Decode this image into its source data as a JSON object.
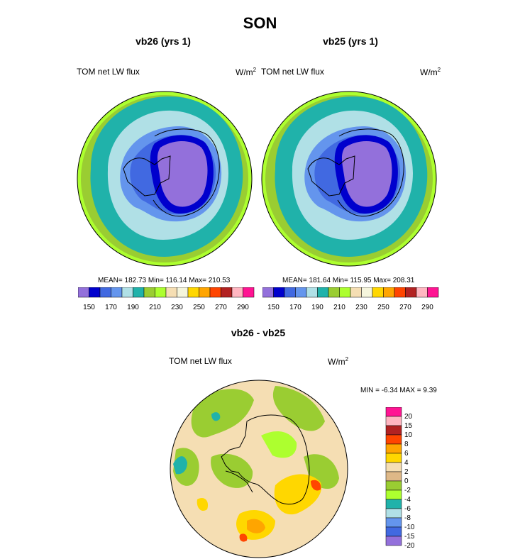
{
  "figure_title": "SON",
  "panels": [
    {
      "title": "vb26 (yrs 1)",
      "variable": "TOM net LW flux",
      "units_base": "W/m",
      "units_exp": "2",
      "stats": "MEAN= 182.73  Min= 116.14  Max= 210.53"
    },
    {
      "title": "vb25 (yrs 1)",
      "variable": "TOM net LW flux",
      "units_base": "W/m",
      "units_exp": "2",
      "stats": "MEAN= 181.64  Min= 115.95  Max= 208.31"
    },
    {
      "title": "vb26 - vb25",
      "variable": "TOM net LW flux",
      "units_base": "W/m",
      "units_exp": "2",
      "stats": "MIN =  -6.34 MAX =   9.39"
    }
  ],
  "colorbar_abs": {
    "colors": [
      "#9370DB",
      "#0000CD",
      "#4169E1",
      "#6495ED",
      "#B0E0E6",
      "#20B2AA",
      "#9ACD32",
      "#ADFF2F",
      "#F5DEB3",
      "#F5F5DC",
      "#FFD700",
      "#FFA500",
      "#FF4500",
      "#B22222",
      "#FFB6C1",
      "#FF1493"
    ],
    "labels": [
      "150",
      "170",
      "190",
      "210",
      "230",
      "250",
      "270",
      "290"
    ]
  },
  "colorbar_diff": {
    "colors": [
      "#9370DB",
      "#4169E1",
      "#6495ED",
      "#B0E0E6",
      "#20B2AA",
      "#ADFF2F",
      "#9ACD32",
      "#DEB887",
      "#F5DEB3",
      "#FFD700",
      "#FFA500",
      "#FF4500",
      "#B22222",
      "#FFB6C1",
      "#FF1493"
    ],
    "labels": [
      "20",
      "15",
      "10",
      "8",
      "6",
      "4",
      "2",
      "0",
      "-2",
      "-4",
      "-6",
      "-8",
      "-10",
      "-15",
      "-20"
    ]
  }
}
